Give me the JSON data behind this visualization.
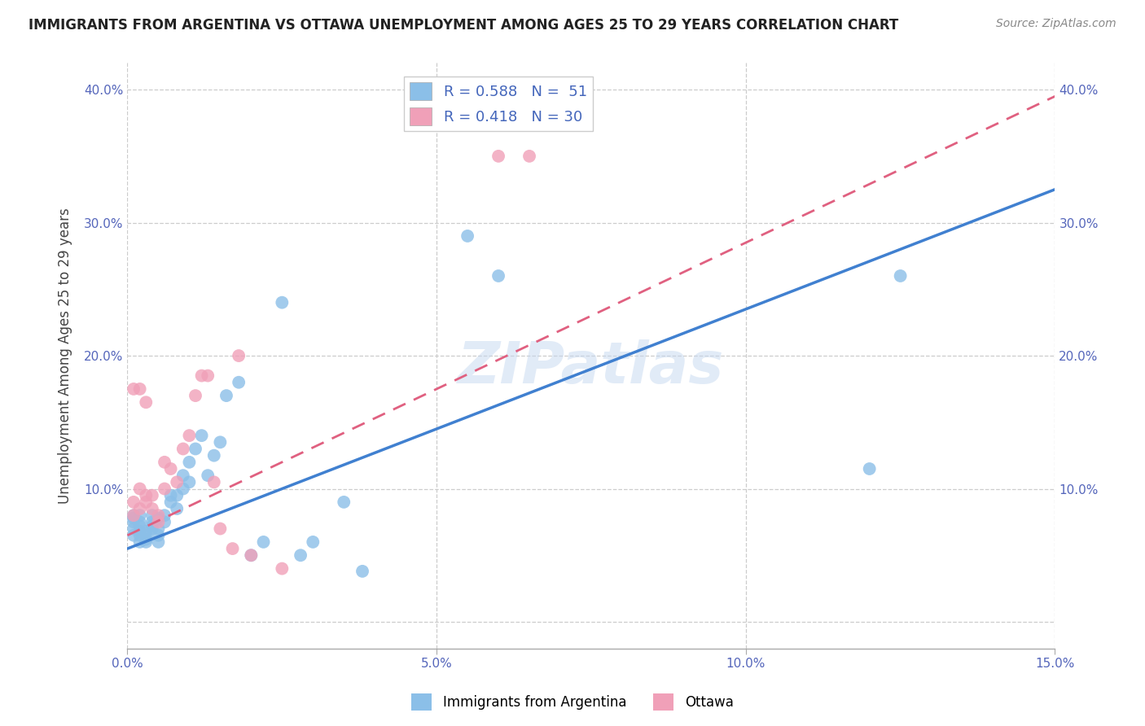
{
  "title": "IMMIGRANTS FROM ARGENTINA VS OTTAWA UNEMPLOYMENT AMONG AGES 25 TO 29 YEARS CORRELATION CHART",
  "source": "Source: ZipAtlas.com",
  "ylabel": "Unemployment Among Ages 25 to 29 years",
  "xlim": [
    0.0,
    0.15
  ],
  "ylim": [
    -0.02,
    0.42
  ],
  "x_ticks": [
    0.0,
    0.05,
    0.1,
    0.15
  ],
  "x_tick_labels": [
    "0.0%",
    "5.0%",
    "10.0%",
    "15.0%"
  ],
  "y_ticks": [
    0.0,
    0.1,
    0.2,
    0.3,
    0.4
  ],
  "y_tick_labels": [
    "",
    "10.0%",
    "20.0%",
    "30.0%",
    "40.0%"
  ],
  "blue_color": "#8bbfe8",
  "pink_color": "#f0a0b8",
  "line_blue": "#4080d0",
  "line_pink": "#e06080",
  "R_blue": 0.588,
  "N_blue": 51,
  "R_pink": 0.418,
  "N_pink": 30,
  "legend_label_blue": "Immigrants from Argentina",
  "legend_label_pink": "Ottawa",
  "blue_line_x0": 0.0,
  "blue_line_y0": 0.055,
  "blue_line_x1": 0.15,
  "blue_line_y1": 0.325,
  "pink_line_x0": 0.0,
  "pink_line_y0": 0.065,
  "pink_line_x1": 0.15,
  "pink_line_y1": 0.395,
  "blue_scatter_x": [
    0.001,
    0.001,
    0.001,
    0.001,
    0.001,
    0.002,
    0.002,
    0.002,
    0.002,
    0.002,
    0.002,
    0.003,
    0.003,
    0.003,
    0.003,
    0.004,
    0.004,
    0.004,
    0.004,
    0.005,
    0.005,
    0.005,
    0.005,
    0.006,
    0.006,
    0.007,
    0.007,
    0.008,
    0.008,
    0.009,
    0.009,
    0.01,
    0.01,
    0.011,
    0.012,
    0.013,
    0.014,
    0.015,
    0.016,
    0.018,
    0.02,
    0.022,
    0.025,
    0.028,
    0.03,
    0.035,
    0.038,
    0.055,
    0.06,
    0.12,
    0.125
  ],
  "blue_scatter_y": [
    0.065,
    0.07,
    0.075,
    0.078,
    0.08,
    0.06,
    0.065,
    0.068,
    0.072,
    0.075,
    0.08,
    0.06,
    0.062,
    0.065,
    0.068,
    0.07,
    0.072,
    0.075,
    0.08,
    0.06,
    0.065,
    0.07,
    0.078,
    0.075,
    0.08,
    0.09,
    0.095,
    0.085,
    0.095,
    0.1,
    0.11,
    0.105,
    0.12,
    0.13,
    0.14,
    0.11,
    0.125,
    0.135,
    0.17,
    0.18,
    0.05,
    0.06,
    0.24,
    0.05,
    0.06,
    0.09,
    0.038,
    0.29,
    0.26,
    0.115,
    0.26
  ],
  "pink_scatter_x": [
    0.001,
    0.001,
    0.001,
    0.002,
    0.002,
    0.002,
    0.003,
    0.003,
    0.003,
    0.004,
    0.004,
    0.005,
    0.005,
    0.006,
    0.006,
    0.007,
    0.008,
    0.009,
    0.01,
    0.011,
    0.012,
    0.013,
    0.014,
    0.015,
    0.017,
    0.018,
    0.02,
    0.025,
    0.06,
    0.065
  ],
  "pink_scatter_y": [
    0.08,
    0.09,
    0.175,
    0.085,
    0.1,
    0.175,
    0.09,
    0.095,
    0.165,
    0.085,
    0.095,
    0.075,
    0.08,
    0.1,
    0.12,
    0.115,
    0.105,
    0.13,
    0.14,
    0.17,
    0.185,
    0.185,
    0.105,
    0.07,
    0.055,
    0.2,
    0.05,
    0.04,
    0.35,
    0.35
  ],
  "watermark": "ZIPatlas",
  "background_color": "#ffffff",
  "grid_color": "#cccccc"
}
